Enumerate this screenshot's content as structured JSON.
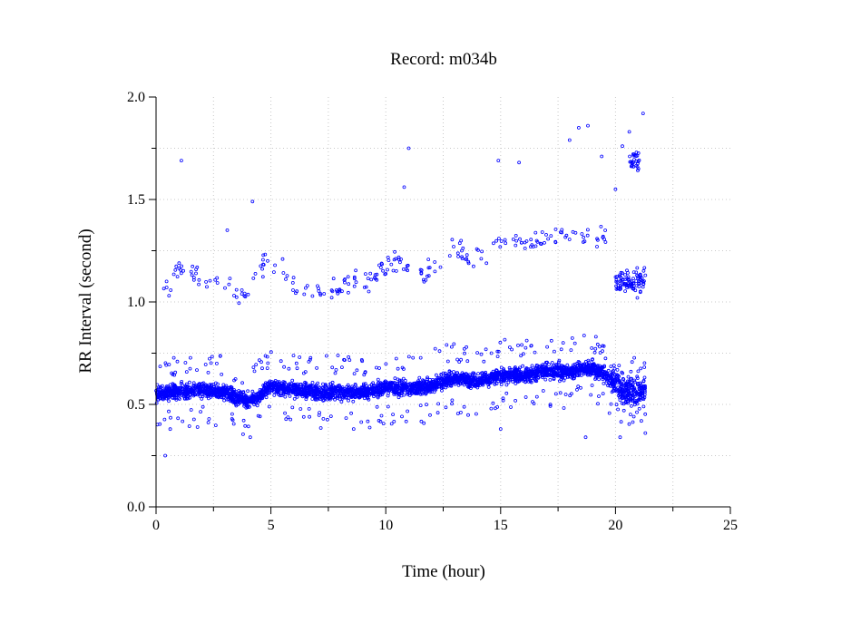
{
  "chart_data": {
    "type": "scatter",
    "title": "Record:  m034b",
    "xlabel": "Time (hour)",
    "ylabel": "RR Interval (second)",
    "xlim": [
      0,
      25
    ],
    "ylim": [
      0.0,
      2.0
    ],
    "xticks": [
      0,
      5,
      10,
      15,
      20,
      25
    ],
    "xtick_labels": [
      "0",
      "5",
      "10",
      "15",
      "20",
      "25"
    ],
    "yticks": [
      0.0,
      0.5,
      1.0,
      1.5,
      2.0
    ],
    "ytick_labels": [
      "0.0",
      "0.5",
      "1.0",
      "1.5",
      "2.0"
    ],
    "grid": true,
    "marker_color": "#0000ff",
    "series": [
      {
        "name": "",
        "baseline_trend": [
          [
            0.0,
            0.55
          ],
          [
            1.0,
            0.56
          ],
          [
            2.0,
            0.57
          ],
          [
            3.0,
            0.56
          ],
          [
            3.5,
            0.53
          ],
          [
            4.0,
            0.52
          ],
          [
            4.5,
            0.54
          ],
          [
            5.0,
            0.59
          ],
          [
            6.0,
            0.57
          ],
          [
            7.0,
            0.56
          ],
          [
            8.0,
            0.56
          ],
          [
            9.0,
            0.56
          ],
          [
            10.0,
            0.58
          ],
          [
            11.0,
            0.58
          ],
          [
            12.0,
            0.59
          ],
          [
            13.0,
            0.63
          ],
          [
            14.0,
            0.61
          ],
          [
            15.0,
            0.64
          ],
          [
            16.0,
            0.64
          ],
          [
            17.0,
            0.66
          ],
          [
            18.0,
            0.66
          ],
          [
            19.0,
            0.68
          ],
          [
            19.8,
            0.62
          ],
          [
            20.5,
            0.55
          ],
          [
            21.3,
            0.57
          ]
        ],
        "upper_band": [
          [
            0.3,
            1.05
          ],
          [
            0.7,
            1.1
          ],
          [
            1.0,
            1.18
          ],
          [
            1.5,
            1.15
          ],
          [
            2.0,
            1.1
          ],
          [
            2.8,
            1.12
          ],
          [
            3.3,
            1.08
          ],
          [
            3.8,
            1.02
          ],
          [
            4.5,
            1.18
          ],
          [
            5.0,
            1.22
          ],
          [
            5.5,
            1.15
          ],
          [
            6.0,
            1.08
          ],
          [
            6.5,
            1.06
          ],
          [
            7.0,
            1.05
          ],
          [
            7.5,
            1.05
          ],
          [
            8.0,
            1.08
          ],
          [
            8.5,
            1.12
          ],
          [
            9.0,
            1.1
          ],
          [
            9.5,
            1.12
          ],
          [
            10.0,
            1.18
          ],
          [
            10.5,
            1.2
          ],
          [
            11.0,
            1.15
          ],
          [
            11.5,
            1.12
          ],
          [
            12.0,
            1.15
          ],
          [
            12.5,
            1.2
          ],
          [
            13.0,
            1.27
          ],
          [
            13.5,
            1.22
          ],
          [
            14.0,
            1.2
          ],
          [
            14.5,
            1.25
          ],
          [
            15.0,
            1.28
          ],
          [
            15.5,
            1.3
          ],
          [
            16.0,
            1.27
          ],
          [
            16.5,
            1.3
          ],
          [
            17.0,
            1.3
          ],
          [
            17.5,
            1.32
          ],
          [
            18.0,
            1.32
          ],
          [
            18.5,
            1.3
          ],
          [
            19.0,
            1.32
          ],
          [
            19.5,
            1.33
          ]
        ],
        "outliers": [
          [
            0.4,
            0.25
          ],
          [
            1.1,
            1.69
          ],
          [
            3.1,
            1.35
          ],
          [
            4.2,
            1.49
          ],
          [
            4.1,
            0.34
          ],
          [
            10.8,
            1.56
          ],
          [
            11.0,
            1.75
          ],
          [
            14.9,
            1.69
          ],
          [
            15.8,
            1.68
          ],
          [
            18.0,
            1.79
          ],
          [
            18.4,
            1.85
          ],
          [
            18.8,
            1.86
          ],
          [
            19.4,
            1.71
          ],
          [
            20.3,
            1.76
          ],
          [
            20.6,
            1.83
          ],
          [
            21.2,
            1.92
          ],
          [
            20.0,
            1.55
          ],
          [
            20.8,
            1.72
          ],
          [
            21.0,
            1.65
          ],
          [
            15.0,
            0.38
          ],
          [
            18.7,
            0.34
          ],
          [
            8.6,
            0.38
          ],
          [
            20.2,
            0.34
          ],
          [
            21.3,
            0.36
          ]
        ]
      }
    ]
  }
}
